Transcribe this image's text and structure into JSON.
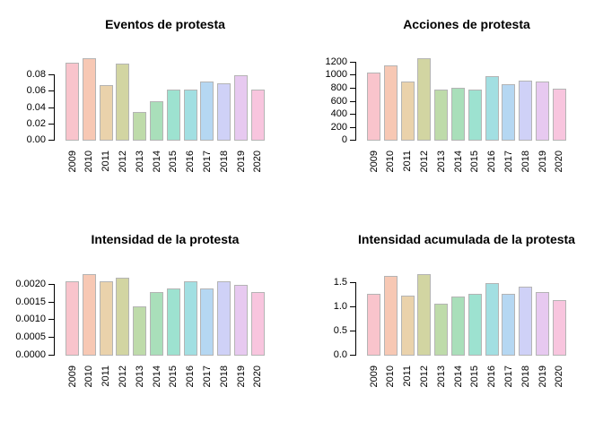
{
  "figure": {
    "background": "#FFFFFF",
    "text_color": "#000000",
    "axis_color": "#000000",
    "bar_border_color": "#B4B4B4",
    "bar_colors": [
      "#F9C4CC",
      "#F7C8B4",
      "#EAD2AB",
      "#D2D5A2",
      "#BEDBAA",
      "#A9DFBA",
      "#9DE2D0",
      "#A2DFE2",
      "#B5D7F2",
      "#CFD1F7",
      "#E7C9F0",
      "#F8C5DE"
    ]
  },
  "chart_data": [
    {
      "type": "bar",
      "title": "Eventos de protesta",
      "categories": [
        "2009",
        "2010",
        "2011",
        "2012",
        "2013",
        "2014",
        "2015",
        "2016",
        "2017",
        "2018",
        "2019",
        "2020"
      ],
      "values": [
        0.095,
        0.101,
        0.068,
        0.094,
        0.035,
        0.048,
        0.063,
        0.063,
        0.072,
        0.07,
        0.08,
        0.063
      ],
      "yticks": [
        0.0,
        0.02,
        0.04,
        0.06,
        0.08
      ],
      "ytick_labels": [
        "0.00",
        "0.02",
        "0.04",
        "0.06",
        "0.08"
      ],
      "ylim": [
        0,
        0.1096
      ],
      "xlabel": "",
      "ylabel": "",
      "grid": false,
      "legend": false
    },
    {
      "type": "bar",
      "title": "Acciones de protesta",
      "categories": [
        "2009",
        "2010",
        "2011",
        "2012",
        "2013",
        "2014",
        "2015",
        "2016",
        "2017",
        "2018",
        "2019",
        "2020"
      ],
      "values": [
        1050,
        1160,
        910,
        1265,
        785,
        820,
        785,
        1000,
        870,
        930,
        910,
        800
      ],
      "yticks": [
        0,
        200,
        400,
        600,
        800,
        1000,
        1200
      ],
      "ytick_labels": [
        "0",
        "200",
        "400",
        "600",
        "800",
        "1000",
        "1200"
      ],
      "ylim": [
        0,
        1379
      ],
      "xlabel": "",
      "ylabel": "",
      "grid": false,
      "legend": false
    },
    {
      "type": "bar",
      "title": "Intensidad de la protesta",
      "categories": [
        "2009",
        "2010",
        "2011",
        "2012",
        "2013",
        "2014",
        "2015",
        "2016",
        "2017",
        "2018",
        "2019",
        "2020"
      ],
      "values": [
        0.0021,
        0.0023,
        0.0021,
        0.0022,
        0.0014,
        0.0018,
        0.0019,
        0.0021,
        0.0019,
        0.0021,
        0.002,
        0.0018
      ],
      "yticks": [
        0.0,
        0.0005,
        0.001,
        0.0015,
        0.002
      ],
      "ytick_labels": [
        "0.0000",
        "0.0005",
        "0.0010",
        "0.0015",
        "0.0020"
      ],
      "ylim": [
        0,
        0.00253
      ],
      "xlabel": "",
      "ylabel": "",
      "grid": false,
      "legend": false
    },
    {
      "type": "bar",
      "title": "Intensidad acumulada de la protesta",
      "categories": [
        "2009",
        "2010",
        "2011",
        "2012",
        "2013",
        "2014",
        "2015",
        "2016",
        "2017",
        "2018",
        "2019",
        "2020"
      ],
      "values": [
        1.28,
        1.64,
        1.24,
        1.69,
        1.07,
        1.22,
        1.27,
        1.51,
        1.27,
        1.42,
        1.31,
        1.15
      ],
      "yticks": [
        0.0,
        0.5,
        1.0,
        1.5
      ],
      "ytick_labels": [
        "0.0",
        "0.5",
        "1.0",
        "1.5"
      ],
      "ylim": [
        0,
        1.852
      ],
      "xlabel": "",
      "ylabel": "",
      "grid": false,
      "legend": false
    }
  ]
}
